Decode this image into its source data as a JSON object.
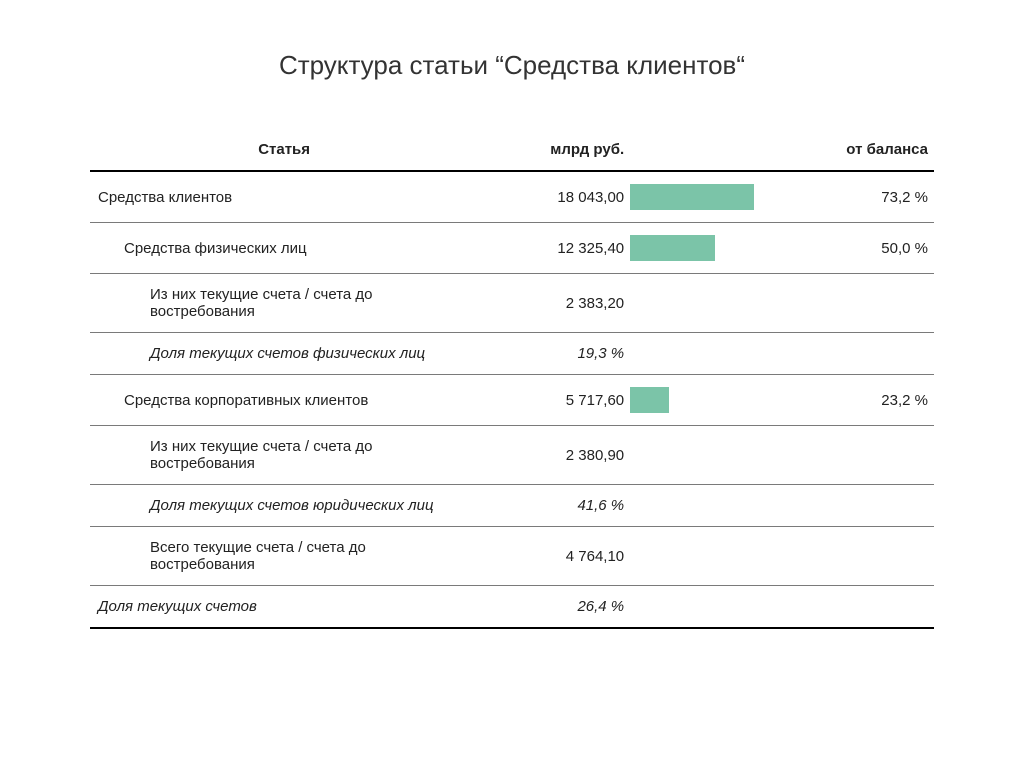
{
  "title": "Структура статьи “Средства клиентов“",
  "table": {
    "headers": {
      "article": "Статья",
      "value": "млрд руб.",
      "balance": "от баланса"
    },
    "bar_color": "#7bc4a8",
    "max_percent": 100,
    "rows": [
      {
        "label": "Средства клиентов",
        "value": "18 043,00",
        "percent_text": "73,2 %",
        "percent": 73.2,
        "indent": 0,
        "italic": false
      },
      {
        "label": "Средства физических лиц",
        "value": "12 325,40",
        "percent_text": "50,0 %",
        "percent": 50.0,
        "indent": 1,
        "italic": false
      },
      {
        "label": "Из них текущие счета / счета до востребования",
        "value": "2 383,20",
        "percent_text": "",
        "percent": null,
        "indent": 2,
        "italic": false
      },
      {
        "label": "Доля текущих счетов физических лиц",
        "value": "19,3 %",
        "percent_text": "",
        "percent": null,
        "indent": 2,
        "italic": true
      },
      {
        "label": "Средства корпоративных клиентов",
        "value": "5 717,60",
        "percent_text": "23,2 %",
        "percent": 23.2,
        "indent": 1,
        "italic": false
      },
      {
        "label": "Из них текущие счета / счета до востребования",
        "value": "2 380,90",
        "percent_text": "",
        "percent": null,
        "indent": 2,
        "italic": false
      },
      {
        "label": "Доля текущих счетов юридических лиц",
        "value": "41,6 %",
        "percent_text": "",
        "percent": null,
        "indent": 2,
        "italic": true
      },
      {
        "label": "Всего текущие счета / счета до востребования",
        "value": "4 764,10",
        "percent_text": "",
        "percent": null,
        "indent": 2,
        "italic": false
      },
      {
        "label": "Доля текущих счетов",
        "value": "26,4 %",
        "percent_text": "",
        "percent": null,
        "indent": 0,
        "italic": true
      }
    ]
  }
}
